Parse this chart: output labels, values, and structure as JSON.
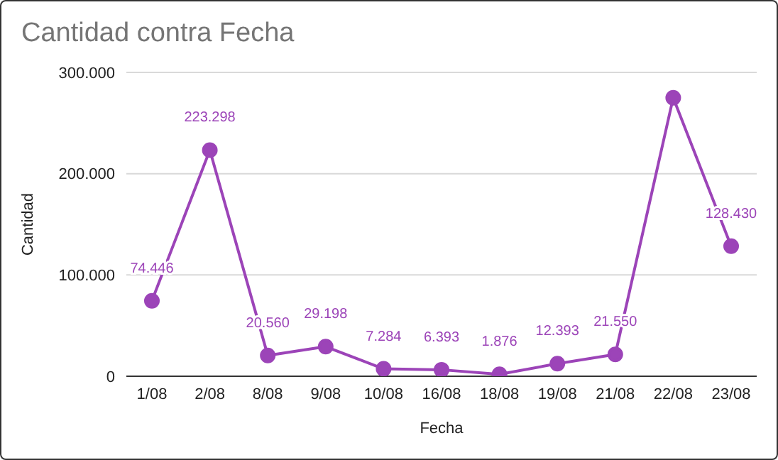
{
  "chart_data": {
    "type": "line",
    "title": "Cantidad contra Fecha",
    "xlabel": "Fecha",
    "ylabel": "Cantidad",
    "categories": [
      "1/08",
      "2/08",
      "8/08",
      "9/08",
      "10/08",
      "16/08",
      "18/08",
      "19/08",
      "21/08",
      "22/08",
      "23/08"
    ],
    "series": [
      {
        "color": "#9c44b8",
        "values": [
          74446,
          223298,
          20560,
          29198,
          7284,
          6393,
          1876,
          12393,
          21550,
          275000,
          128430
        ],
        "value_labels": [
          "74.446",
          "223.298",
          "20.560",
          "29.198",
          "7.284",
          "6.393",
          "1.876",
          "12.393",
          "21.550",
          null,
          "128.430"
        ]
      }
    ],
    "ylim": [
      0,
      300000
    ],
    "yticks": [
      {
        "value": 0,
        "label": "0"
      },
      {
        "value": 100000,
        "label": "100.000"
      },
      {
        "value": 200000,
        "label": "200.000"
      },
      {
        "value": 300000,
        "label": "300.000"
      }
    ],
    "grid": "y",
    "marker": "circle",
    "line_style": "solid"
  }
}
